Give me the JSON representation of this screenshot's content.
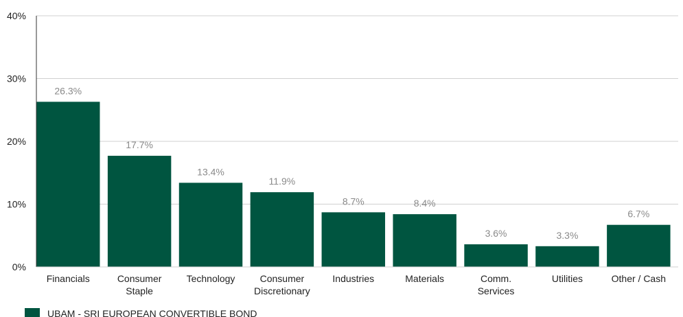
{
  "chart_data": {
    "type": "bar",
    "categories": [
      "Financials",
      "Consumer Staple",
      "Technology",
      "Consumer Discretionary",
      "Industries",
      "Materials",
      "Comm. Services",
      "Utilities",
      "Other / Cash"
    ],
    "category_lines": [
      [
        "Financials"
      ],
      [
        "Consumer",
        "Staple"
      ],
      [
        "Technology"
      ],
      [
        "Consumer",
        "Discretionary"
      ],
      [
        "Industries"
      ],
      [
        "Materials"
      ],
      [
        "Comm.",
        "Services"
      ],
      [
        "Utilities"
      ],
      [
        "Other / Cash"
      ]
    ],
    "series": [
      {
        "name": "UBAM - SRI EUROPEAN CONVERTIBLE BOND",
        "values": [
          26.3,
          17.7,
          13.4,
          11.9,
          8.7,
          8.4,
          3.6,
          3.3,
          6.7
        ],
        "data_labels": [
          "26.3%",
          "17.7%",
          "13.4%",
          "11.9%",
          "8.7%",
          "8.4%",
          "3.6%",
          "3.3%",
          "6.7%"
        ]
      }
    ],
    "yticks": [
      0,
      10,
      20,
      30,
      40
    ],
    "ytick_labels": [
      "0%",
      "10%",
      "20%",
      "30%",
      "40%"
    ],
    "ylim": [
      0,
      40
    ],
    "grid": true,
    "legend_position": "bottom-left",
    "colors": {
      "bar": "#005540",
      "grid": "#d0d0d0",
      "axis": "#333333",
      "data_label": "#8a8a8a",
      "text": "#222222"
    }
  }
}
